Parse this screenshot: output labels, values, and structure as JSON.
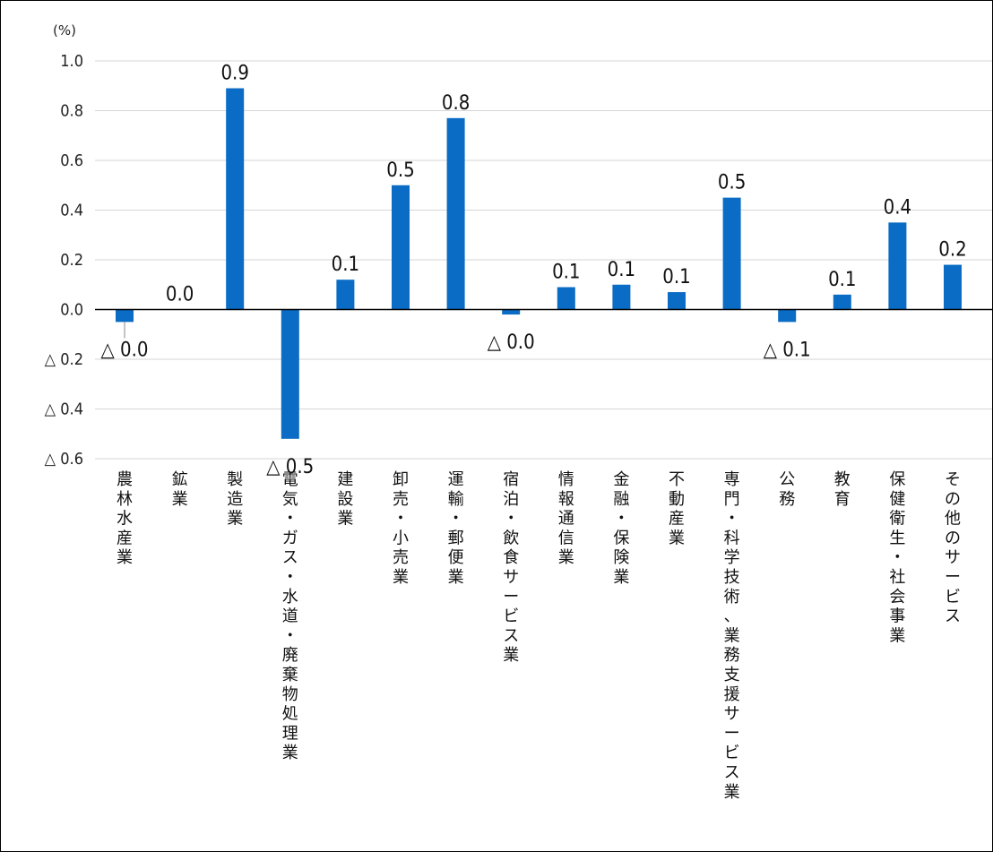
{
  "chart_data": {
    "type": "bar",
    "unit_label": "(%)",
    "ylim": [
      -0.6,
      1.0
    ],
    "y_ticks": [
      1.0,
      0.8,
      0.6,
      0.4,
      0.2,
      0.0,
      -0.2,
      -0.4,
      -0.6
    ],
    "y_tick_labels": [
      "1.0",
      "0.8",
      "0.6",
      "0.4",
      "0.2",
      "0.0",
      "△ 0.2",
      "△ 0.4",
      "△ 0.6"
    ],
    "grid": true,
    "bar_color": "#0a6cc4",
    "categories": [
      "農林水産業",
      "鉱業",
      "製造業",
      "電気・ガス・水道・廃棄物処理業",
      "建設業",
      "卸売・小売業",
      "運輸・郵便業",
      "宿泊・飲食サービス業",
      "情報通信業",
      "金融・保険業",
      "不動産業",
      "専門・科学技術、業務支援サービス業",
      "公務",
      "教育",
      "保健衛生・社会事業",
      "その他のサービス"
    ],
    "values": [
      -0.05,
      0.0,
      0.89,
      -0.52,
      0.12,
      0.5,
      0.77,
      -0.02,
      0.09,
      0.1,
      0.07,
      0.45,
      -0.05,
      0.06,
      0.35,
      0.18
    ],
    "data_labels": [
      "△ 0.0",
      "0.0",
      "0.9",
      "△ 0.5",
      "0.1",
      "0.5",
      "0.8",
      "△ 0.0",
      "0.1",
      "0.1",
      "0.1",
      "0.5",
      "△ 0.1",
      "0.1",
      "0.4",
      "0.2"
    ]
  }
}
